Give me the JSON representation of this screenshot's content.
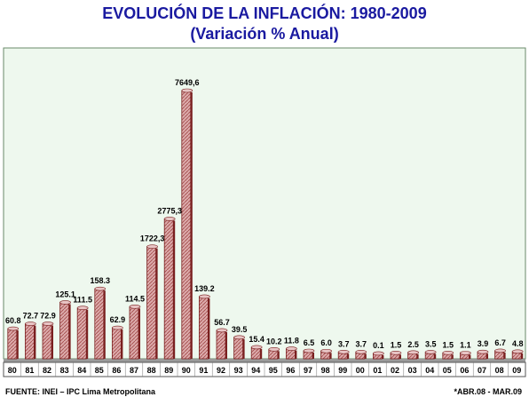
{
  "chart_data": {
    "type": "bar",
    "title": "EVOLUCIÓN DE LA INFLACIÓN: 1980-2009",
    "subtitle": "(Variación % Anual)",
    "xlabel": "",
    "ylabel": "",
    "categories": [
      "80",
      "81",
      "82",
      "83",
      "84",
      "85",
      "86",
      "87",
      "88",
      "89",
      "90",
      "91",
      "92",
      "93",
      "94",
      "95",
      "96",
      "97",
      "98",
      "99",
      "00",
      "01",
      "02",
      "03",
      "04",
      "05",
      "06",
      "07",
      "08",
      "09"
    ],
    "values": [
      60.8,
      72.7,
      72.9,
      125.1,
      111.5,
      158.3,
      62.9,
      114.5,
      1722.3,
      2775.3,
      7649.6,
      139.2,
      56.7,
      39.5,
      15.4,
      10.2,
      11.8,
      6.5,
      6.0,
      3.7,
      3.7,
      0.1,
      1.5,
      2.5,
      3.5,
      1.5,
      1.1,
      3.9,
      6.7,
      4.8
    ],
    "value_labels": [
      "60.8",
      "72.7",
      "72.9",
      "125.1",
      "111.5",
      "158.3",
      "62.9",
      "114.5",
      "1722,3",
      "2775,3",
      "7649,6",
      "139.2",
      "56.7",
      "39.5",
      "15.4",
      "10.2",
      "11.8",
      "6.5",
      "6.0",
      "3.7",
      "3.7",
      "0.1",
      "1.5",
      "2.5",
      "3.5",
      "1.5",
      "1.1",
      "3.9",
      "6.7",
      "4.8"
    ],
    "scale": "non-linear (broken)",
    "grid": false,
    "legend": "none",
    "colors": {
      "plot_background": "#eef8ee",
      "bar_fill": "#d9a0a0",
      "bar_dark": "#7a2020",
      "bar_hatch": "#a85050",
      "title": "#1a1aa0"
    }
  },
  "footer": {
    "source": "FUENTE: INEI – IPC Lima Metropolitana",
    "period": "*ABR.08 - MAR.09"
  }
}
